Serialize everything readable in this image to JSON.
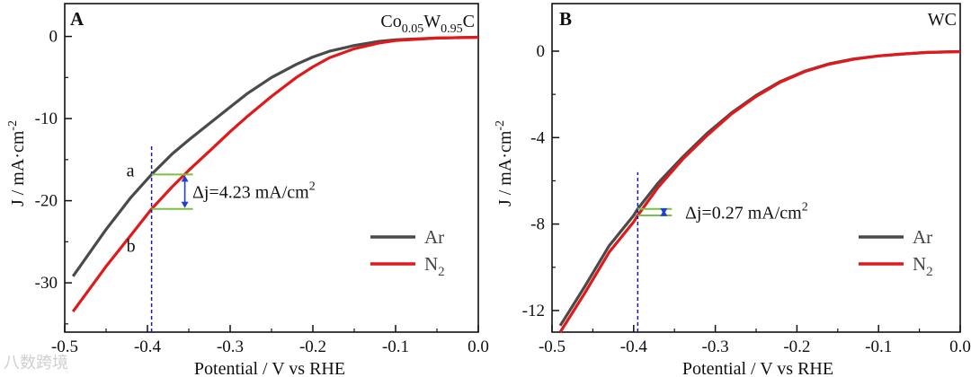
{
  "chart_data": [
    {
      "panel": "A",
      "type": "line",
      "title": "Co0.05W0.95C",
      "title_parts": {
        "base1": "Co",
        "sub1": "0.05",
        "base2": "W",
        "sub2": "0.95",
        "base3": "C"
      },
      "xlabel": "Potential / V vs RHE",
      "ylabel": "J / mA·cm-2",
      "ylabel_parts": {
        "base": "J / mA·cm",
        "sup": "-2"
      },
      "xlim": [
        -0.5,
        0.0
      ],
      "ylim": [
        -36,
        4
      ],
      "xticks": [
        -0.5,
        -0.4,
        -0.3,
        -0.2,
        -0.1,
        0.0
      ],
      "xtick_labels": [
        "-0.5",
        "-0.4",
        "-0.3",
        "-0.2",
        "-0.1",
        "0.0"
      ],
      "yticks": [
        0,
        -10,
        -20,
        -30
      ],
      "ytick_labels": [
        "0",
        "-10",
        "-20",
        "-30"
      ],
      "grid": false,
      "legend_position": "center-right",
      "series": [
        {
          "name": "Ar",
          "name_parts": {
            "base": "Ar",
            "sub": ""
          },
          "color": "#4a4a4a",
          "x": [
            -0.49,
            -0.45,
            -0.42,
            -0.395,
            -0.37,
            -0.35,
            -0.32,
            -0.3,
            -0.28,
            -0.25,
            -0.22,
            -0.2,
            -0.18,
            -0.15,
            -0.12,
            -0.1,
            -0.05,
            0.0
          ],
          "y": [
            -29.2,
            -23.5,
            -19.6,
            -16.8,
            -14.3,
            -12.6,
            -10.2,
            -8.6,
            -7.0,
            -5.0,
            -3.4,
            -2.5,
            -1.8,
            -1.1,
            -0.6,
            -0.4,
            -0.2,
            -0.1
          ]
        },
        {
          "name": "N2",
          "name_parts": {
            "base": "N",
            "sub": "2"
          },
          "color": "#e0191b",
          "x": [
            -0.49,
            -0.45,
            -0.42,
            -0.395,
            -0.37,
            -0.35,
            -0.32,
            -0.3,
            -0.28,
            -0.25,
            -0.22,
            -0.2,
            -0.18,
            -0.15,
            -0.12,
            -0.1,
            -0.05,
            0.0
          ],
          "y": [
            -33.5,
            -28.0,
            -24.2,
            -21.0,
            -18.3,
            -16.3,
            -13.5,
            -11.6,
            -9.8,
            -7.3,
            -5.0,
            -3.7,
            -2.6,
            -1.5,
            -0.8,
            -0.5,
            -0.2,
            -0.1
          ]
        }
      ],
      "annotations": {
        "vline_x": -0.395,
        "a_label": "a",
        "b_label": "b",
        "a_value": -16.8,
        "b_value": -21.0,
        "delta_text_base": "Δj=4.23 mA/cm",
        "delta_text_sup": "2"
      }
    },
    {
      "panel": "B",
      "type": "line",
      "title": "WC",
      "xlabel": "Potential / V vs RHE",
      "ylabel": "J / mA·cm-2",
      "ylabel_parts": {
        "base": "J / mA·cm",
        "sup": "-2"
      },
      "xlim": [
        -0.5,
        0.0
      ],
      "ylim": [
        -13,
        2.2
      ],
      "xticks": [
        -0.5,
        -0.4,
        -0.3,
        -0.2,
        -0.1,
        0.0
      ],
      "xtick_labels": [
        "-0.5",
        "-0.4",
        "-0.3",
        "-0.2",
        "-0.1",
        "0.0"
      ],
      "yticks": [
        0,
        -4,
        -8,
        -12
      ],
      "ytick_labels": [
        "0",
        "-4",
        "-8",
        "-12"
      ],
      "grid": false,
      "legend_position": "center-right",
      "series": [
        {
          "name": "Ar",
          "name_parts": {
            "base": "Ar",
            "sub": ""
          },
          "color": "#4a4a4a",
          "x": [
            -0.49,
            -0.46,
            -0.43,
            -0.4,
            -0.395,
            -0.37,
            -0.34,
            -0.31,
            -0.28,
            -0.25,
            -0.22,
            -0.19,
            -0.16,
            -0.13,
            -0.1,
            -0.07,
            -0.04,
            0.0
          ],
          "y": [
            -12.7,
            -10.9,
            -9.0,
            -7.6,
            -7.3,
            -6.1,
            -4.9,
            -3.8,
            -2.85,
            -2.05,
            -1.4,
            -0.92,
            -0.58,
            -0.36,
            -0.22,
            -0.13,
            -0.06,
            -0.02
          ]
        },
        {
          "name": "N2",
          "name_parts": {
            "base": "N",
            "sub": "2"
          },
          "color": "#e0191b",
          "x": [
            -0.49,
            -0.46,
            -0.43,
            -0.4,
            -0.395,
            -0.37,
            -0.34,
            -0.31,
            -0.28,
            -0.25,
            -0.22,
            -0.19,
            -0.16,
            -0.13,
            -0.1,
            -0.07,
            -0.04,
            0.0
          ],
          "y": [
            -13.0,
            -11.2,
            -9.3,
            -7.9,
            -7.6,
            -6.3,
            -5.0,
            -3.9,
            -2.9,
            -2.1,
            -1.43,
            -0.94,
            -0.6,
            -0.37,
            -0.22,
            -0.13,
            -0.06,
            -0.02
          ]
        }
      ],
      "annotations": {
        "vline_x": -0.395,
        "a_value": -7.3,
        "b_value": -7.6,
        "delta_text_base": "Δj=0.27 mA/cm",
        "delta_text_sup": "2"
      }
    }
  ],
  "watermark": "八数跨境",
  "colors": {
    "ar": "#4a4a4a",
    "n2": "#e0191b",
    "guide": "#1a1aa8",
    "marker": "#7ac142",
    "arrow": "#1f3fd6"
  }
}
